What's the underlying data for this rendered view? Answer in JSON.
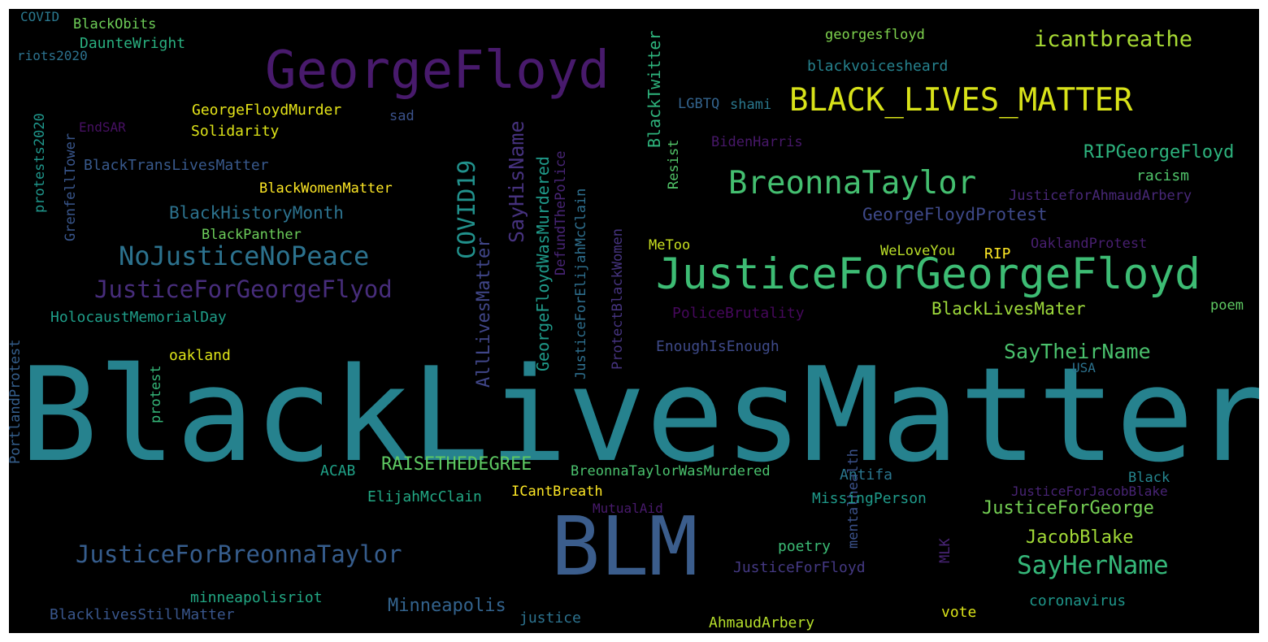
{
  "words": [
    {
      "text": "BlackLivesMatter",
      "color": "#26828e"
    },
    {
      "text": "BLM",
      "color": "#3b5d8c"
    },
    {
      "text": "GeorgeFloyd",
      "color": "#481a6c"
    },
    {
      "text": "JusticeForGeorgeFloyd",
      "color": "#3dbc74"
    },
    {
      "text": "BLACK_LIVES_MATTER",
      "color": "#d8e219"
    },
    {
      "text": "BreonnaTaylor",
      "color": "#44bf70"
    },
    {
      "text": "NoJusticeNoPeace",
      "color": "#2c728e"
    },
    {
      "text": "JusticeForBreonnaTaylor",
      "color": "#365d8d"
    },
    {
      "text": "JusticeForGeorgeFlyod",
      "color": "#472d7b"
    },
    {
      "text": "SayHerName",
      "color": "#35b779"
    },
    {
      "text": "icantbreathe",
      "color": "#a8db34"
    },
    {
      "text": "SayTheirName",
      "color": "#4ac16d"
    },
    {
      "text": "RIPGeorgeFloyd",
      "color": "#2db27d"
    },
    {
      "text": "Minneapolis",
      "color": "#33638d"
    },
    {
      "text": "JusticeForGeorge",
      "color": "#75d054"
    },
    {
      "text": "JacobBlake",
      "color": "#a2da37"
    },
    {
      "text": "RAISETHEDEGREE",
      "color": "#5ec962"
    },
    {
      "text": "BlackHistoryMonth",
      "color": "#2c728e"
    },
    {
      "text": "GeorgeFloydProtest",
      "color": "#3e4989"
    },
    {
      "text": "BlackLivesMater",
      "color": "#9dd93b"
    },
    {
      "text": "COVID19",
      "color": "#21918c"
    },
    {
      "text": "SayHisName",
      "color": "#46327e"
    },
    {
      "text": "AllLivesMatter",
      "color": "#404688"
    },
    {
      "text": "GeorgeFloydWasMurdered",
      "color": "#1f9a8a"
    },
    {
      "text": "DefundThePolice",
      "color": "#482576"
    },
    {
      "text": "JusticeForElijahMcClain",
      "color": "#2e6f8e"
    },
    {
      "text": "ProtectBlackWomen",
      "color": "#463480"
    },
    {
      "text": "BlackTwitter",
      "color": "#2eb37c"
    },
    {
      "text": "Resist",
      "color": "#52c569"
    },
    {
      "text": "GeorgeFloydMurder",
      "color": "#e5e419"
    },
    {
      "text": "Solidarity",
      "color": "#dde318"
    },
    {
      "text": "BlackWomenMatter",
      "color": "#fde725"
    },
    {
      "text": "BlackPanther",
      "color": "#6ccd5a"
    },
    {
      "text": "BlackTransLivesMatter",
      "color": "#38598c"
    },
    {
      "text": "HolocaustMemorialDay",
      "color": "#1f9e89"
    },
    {
      "text": "protest",
      "color": "#35b779"
    },
    {
      "text": "oakland",
      "color": "#dde318"
    },
    {
      "text": "PortlandProtest",
      "color": "#355f8d"
    },
    {
      "text": "protests2020",
      "color": "#1f968b"
    },
    {
      "text": "GrenfellTower",
      "color": "#39568c"
    },
    {
      "text": "EndSAR",
      "color": "#471063"
    },
    {
      "text": "sad",
      "color": "#3b528b"
    },
    {
      "text": "COVID",
      "color": "#2a788e"
    },
    {
      "text": "BlackObits",
      "color": "#6ece58"
    },
    {
      "text": "DaunteWright",
      "color": "#29af7f"
    },
    {
      "text": "riots2020",
      "color": "#2c728e"
    },
    {
      "text": "georgesfloyd",
      "color": "#7fd34e"
    },
    {
      "text": "blackvoicesheard",
      "color": "#26828e"
    },
    {
      "text": "LGBTQ",
      "color": "#33638d"
    },
    {
      "text": "shami",
      "color": "#2a788e"
    },
    {
      "text": "BidenHarris",
      "color": "#48186a"
    },
    {
      "text": "racism",
      "color": "#50c46a"
    },
    {
      "text": "JusticeforAhmaudArbery",
      "color": "#482878"
    },
    {
      "text": "OaklandProtest",
      "color": "#481f70"
    },
    {
      "text": "MeToo",
      "color": "#c8e020"
    },
    {
      "text": "WeLoveYou",
      "color": "#bade28"
    },
    {
      "text": "RIP",
      "color": "#fde725"
    },
    {
      "text": "PoliceBrutality",
      "color": "#46085c"
    },
    {
      "text": "EnoughIsEnough",
      "color": "#3e4a89"
    },
    {
      "text": "poem",
      "color": "#5ec962"
    },
    {
      "text": "USA",
      "color": "#2c728e"
    },
    {
      "text": "ACAB",
      "color": "#1fa187"
    },
    {
      "text": "BreonnaTaylorWasMurdered",
      "color": "#4ac16d"
    },
    {
      "text": "ElijahMcClain",
      "color": "#22a884"
    },
    {
      "text": "ICantBreath",
      "color": "#fde725"
    },
    {
      "text": "Antifa",
      "color": "#2a768e"
    },
    {
      "text": "mentalhealth",
      "color": "#3b528b"
    },
    {
      "text": "MLK",
      "color": "#482475"
    },
    {
      "text": "MissingPerson",
      "color": "#1f9a8a"
    },
    {
      "text": "Black",
      "color": "#25858e"
    },
    {
      "text": "JusticeForJacobBlake",
      "color": "#482475"
    },
    {
      "text": "MutualAid",
      "color": "#481a6c"
    },
    {
      "text": "poetry",
      "color": "#3bbb75"
    },
    {
      "text": "JusticeForFloyd",
      "color": "#443983"
    },
    {
      "text": "minneapolisriot",
      "color": "#22a884"
    },
    {
      "text": "BlacklivesStillMatter",
      "color": "#39568c"
    },
    {
      "text": "justice",
      "color": "#2c728e"
    },
    {
      "text": "AhmaudArbery",
      "color": "#b5de2b"
    },
    {
      "text": "vote",
      "color": "#dae319"
    },
    {
      "text": "coronavirus",
      "color": "#1f978b"
    }
  ]
}
